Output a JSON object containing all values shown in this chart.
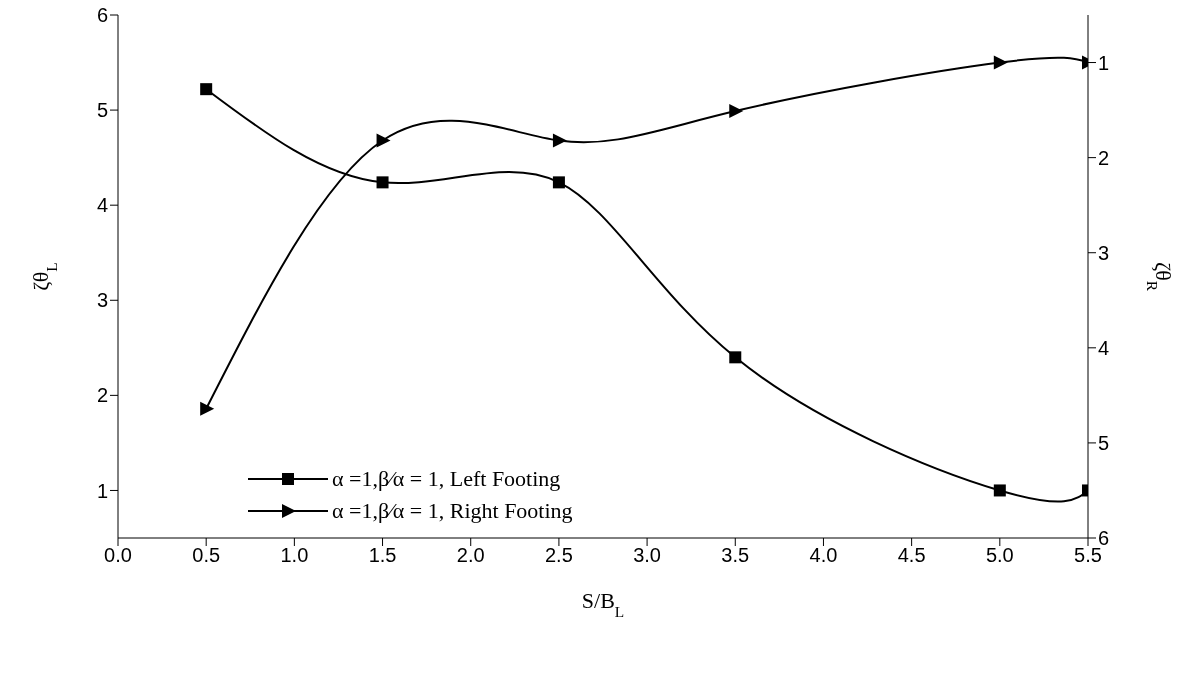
{
  "chart_data": {
    "type": "line",
    "xlabel": "S/B$_{L}$",
    "ylabel": "ζθ$_{L}$",
    "y2label": "ζθ$_{R}$",
    "x": [
      0.5,
      1.5,
      2.5,
      3.5,
      5.0,
      5.5
    ],
    "series": [
      {
        "name": "α =1,β⁄α = 1, Left Footing",
        "color": "#000000",
        "marker": "square",
        "values": [
          5.22,
          4.24,
          4.24,
          2.4,
          1.0,
          1.0
        ]
      },
      {
        "name": "α =1,β⁄α = 1, Right Footing",
        "color": "#000000",
        "marker": "triangle",
        "axis": "y2",
        "values": [
          4.64,
          1.82,
          1.82,
          1.51,
          1.0,
          1.0
        ]
      }
    ],
    "xlim": [
      0,
      5.5
    ],
    "xticks": [
      {
        "value": 0,
        "label": "0.0"
      },
      {
        "value": 0.5,
        "label": "0.5"
      },
      {
        "value": 1,
        "label": "1.0"
      },
      {
        "value": 1.5,
        "label": "1.5"
      },
      {
        "value": 2,
        "label": "2.0"
      },
      {
        "value": 2.5,
        "label": "2.5"
      },
      {
        "value": 3,
        "label": "3.0"
      },
      {
        "value": 3.5,
        "label": "3.5"
      },
      {
        "value": 4,
        "label": "4.0"
      },
      {
        "value": 4.5,
        "label": "4.5"
      },
      {
        "value": 5,
        "label": "5.0"
      },
      {
        "value": 5.5,
        "label": "5.5"
      }
    ],
    "ylim": [
      0.5,
      6
    ],
    "yticks": [
      1,
      2,
      3,
      4,
      5,
      6
    ],
    "y2lim": [
      6,
      0.5
    ],
    "y2ticks": [
      1,
      2,
      3,
      4,
      5,
      6
    ],
    "grid": false,
    "legend": "bottom left",
    "line_style": "solid"
  }
}
